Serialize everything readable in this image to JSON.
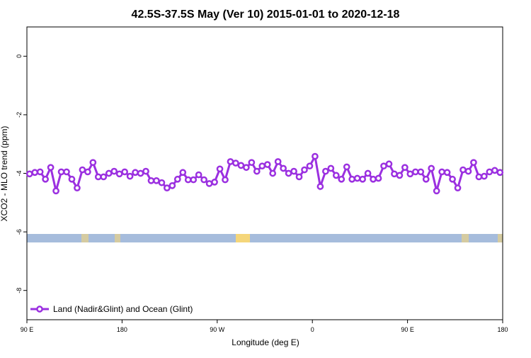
{
  "chart_data": {
    "type": "line",
    "title": "42.5S-37.5S May (Ver 10)   2015-01-01 to 2020-12-18",
    "x_label": "Longitude (deg E)",
    "y_label": "XCO2 - MLO trend (ppm)",
    "xlim": [
      90,
      540
    ],
    "ylim": [
      -9,
      1
    ],
    "xticks": [
      {
        "value": 90,
        "label": "90 E"
      },
      180,
      {
        "value": 270,
        "label": "90 W"
      },
      {
        "value": 360,
        "label": "0"
      },
      {
        "value": 450,
        "label": "90 E"
      },
      {
        "value": 540,
        "label": "180"
      }
    ],
    "yticks": [
      0,
      -2,
      -4,
      -6,
      -8
    ],
    "legend_position": "lower left",
    "series": [
      {
        "name": "Land (Nadir&Glint) and Ocean (Glint)",
        "color": "#9b30e0",
        "x": [
          92.5,
          97.5,
          102.5,
          107.5,
          112.5,
          117.5,
          122.5,
          127.5,
          132.5,
          137.5,
          142.5,
          147.5,
          152.5,
          157.5,
          162.5,
          167.5,
          172.5,
          177.5,
          182.5,
          187.5,
          192.5,
          197.5,
          202.5,
          207.5,
          212.5,
          217.5,
          222.5,
          227.5,
          232.5,
          237.5,
          242.5,
          247.5,
          252.5,
          257.5,
          262.5,
          267.5,
          272.5,
          277.5,
          282.5,
          287.5,
          292.5,
          297.5,
          302.5,
          307.5,
          312.5,
          317.5,
          322.5,
          327.5,
          332.5,
          337.5,
          342.5,
          347.5,
          352.5,
          357.5,
          362.5,
          367.5,
          372.5,
          377.5,
          382.5,
          387.5,
          392.5,
          397.5,
          402.5,
          407.5,
          412.5,
          417.5,
          422.5,
          427.5,
          432.5,
          437.5,
          442.5,
          447.5,
          452.5,
          457.5,
          462.5,
          467.5,
          472.5,
          477.5,
          482.5,
          487.5,
          492.5,
          497.5,
          502.5,
          507.5,
          512.5,
          517.5,
          522.5,
          527.5,
          532.5,
          537.5
        ],
        "values": [
          -4.02,
          -3.97,
          -3.95,
          -4.2,
          -3.8,
          -4.6,
          -3.95,
          -3.95,
          -4.2,
          -4.5,
          -3.88,
          -3.95,
          -3.63,
          -4.12,
          -4.12,
          -4.0,
          -3.93,
          -4.02,
          -3.95,
          -4.1,
          -3.97,
          -4.0,
          -3.93,
          -4.25,
          -4.25,
          -4.32,
          -4.5,
          -4.42,
          -4.2,
          -3.97,
          -4.22,
          -4.22,
          -4.05,
          -4.22,
          -4.35,
          -4.3,
          -3.85,
          -4.22,
          -3.6,
          -3.65,
          -3.73,
          -3.8,
          -3.63,
          -3.93,
          -3.75,
          -3.7,
          -4.0,
          -3.6,
          -3.83,
          -4.0,
          -3.93,
          -4.12,
          -3.88,
          -3.75,
          -3.42,
          -4.45,
          -3.93,
          -3.83,
          -4.07,
          -4.2,
          -3.78,
          -4.2,
          -4.17,
          -4.2,
          -4.0,
          -4.2,
          -4.17,
          -3.75,
          -3.68,
          -4.02,
          -4.07,
          -3.8,
          -4.02,
          -3.95,
          -3.95,
          -4.2,
          -3.83,
          -4.6,
          -3.95,
          -3.97,
          -4.2,
          -4.5,
          -3.88,
          -3.93,
          -3.63,
          -4.12,
          -4.1,
          -3.95,
          -3.9,
          -3.97
        ]
      }
    ]
  }
}
